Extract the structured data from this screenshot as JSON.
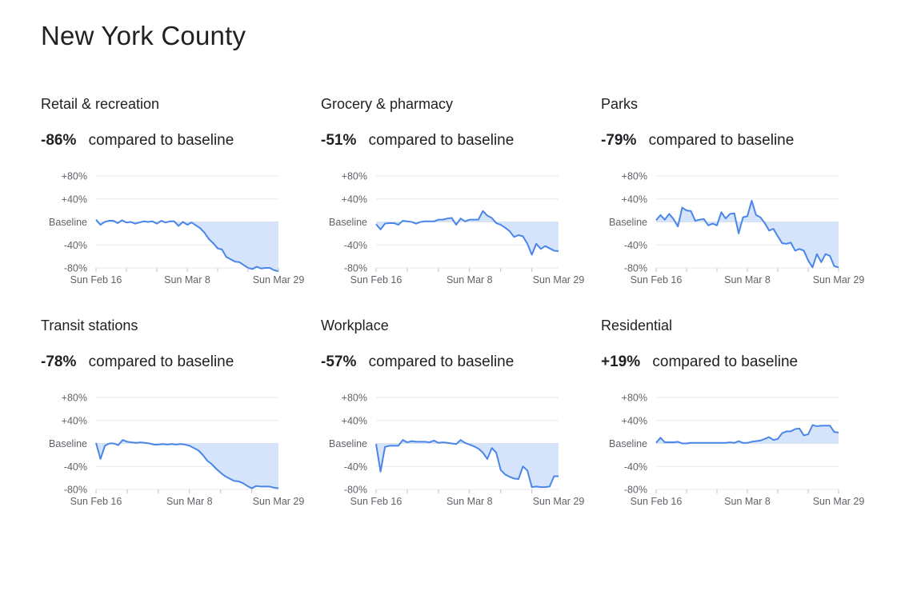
{
  "title": "New York County",
  "chart_data": [
    {
      "type": "line",
      "title": "Retail & recreation",
      "change_value": "-86%",
      "change_label": "compared to baseline",
      "y_ticks": [
        "+80%",
        "+40%",
        "Baseline",
        "-40%",
        "-80%"
      ],
      "x_ticks": [
        "Sun Feb 16",
        "Sun Mar 8",
        "Sun Mar 29"
      ],
      "ylim": [
        -80,
        80
      ],
      "colors": {
        "line": "#4a86e8",
        "fill": "#d6e4fb"
      },
      "values": [
        4,
        -5,
        0,
        2,
        2,
        -2,
        3,
        -1,
        0,
        -3,
        -1,
        1,
        0,
        1,
        -3,
        2,
        -1,
        1,
        1,
        -7,
        0,
        -5,
        -1,
        -6,
        -11,
        -19,
        -30,
        -37,
        -46,
        -48,
        -61,
        -65,
        -69,
        -70,
        -75,
        -80,
        -82,
        -78,
        -81,
        -80,
        -80,
        -84,
        -86
      ]
    },
    {
      "type": "line",
      "title": "Grocery & pharmacy",
      "change_value": "-51%",
      "change_label": "compared to baseline",
      "y_ticks": [
        "+80%",
        "+40%",
        "Baseline",
        "-40%",
        "-80%"
      ],
      "x_ticks": [
        "Sun Feb 16",
        "Sun Mar 8",
        "Sun Mar 29"
      ],
      "ylim": [
        -80,
        80
      ],
      "colors": {
        "line": "#4a86e8",
        "fill": "#d6e4fb"
      },
      "values": [
        -4,
        -13,
        -3,
        -2,
        -2,
        -5,
        2,
        1,
        0,
        -3,
        0,
        1,
        1,
        1,
        4,
        4,
        6,
        7,
        -5,
        6,
        1,
        4,
        4,
        4,
        19,
        11,
        7,
        -2,
        -5,
        -10,
        -16,
        -26,
        -23,
        -25,
        -38,
        -57,
        -38,
        -47,
        -42,
        -46,
        -50,
        -51
      ]
    },
    {
      "type": "line",
      "title": "Parks",
      "change_value": "-79%",
      "change_label": "compared to baseline",
      "y_ticks": [
        "+80%",
        "+40%",
        "Baseline",
        "-40%",
        "-80%"
      ],
      "x_ticks": [
        "Sun Feb 16",
        "Sun Mar 8",
        "Sun Mar 29"
      ],
      "ylim": [
        -80,
        80
      ],
      "colors": {
        "line": "#4a86e8",
        "fill": "#d6e4fb"
      },
      "values": [
        3,
        12,
        4,
        14,
        5,
        -8,
        25,
        20,
        19,
        2,
        4,
        5,
        -6,
        -3,
        -6,
        17,
        6,
        14,
        15,
        -20,
        8,
        10,
        37,
        12,
        8,
        -2,
        -15,
        -12,
        -25,
        -37,
        -38,
        -36,
        -50,
        -47,
        -50,
        -67,
        -79,
        -56,
        -70,
        -56,
        -59,
        -77,
        -79
      ]
    },
    {
      "type": "line",
      "title": "Transit stations",
      "change_value": "-78%",
      "change_label": "compared to baseline",
      "y_ticks": [
        "+80%",
        "+40%",
        "Baseline",
        "-40%",
        "-80%"
      ],
      "x_ticks": [
        "Sun Feb 16",
        "Sun Mar 8",
        "Sun Mar 29"
      ],
      "ylim": [
        -80,
        80
      ],
      "colors": {
        "line": "#4a86e8",
        "fill": "#d6e4fb"
      },
      "values": [
        1,
        -27,
        -4,
        0,
        0,
        -3,
        6,
        3,
        2,
        1,
        2,
        1,
        0,
        -2,
        -2,
        -1,
        -2,
        -1,
        -2,
        -1,
        -2,
        -4,
        -8,
        -12,
        -20,
        -30,
        -36,
        -44,
        -51,
        -57,
        -61,
        -65,
        -66,
        -69,
        -74,
        -78,
        -74,
        -75,
        -75,
        -75,
        -77,
        -78
      ]
    },
    {
      "type": "line",
      "title": "Workplace",
      "change_value": "-57%",
      "change_label": "compared to baseline",
      "y_ticks": [
        "+80%",
        "+40%",
        "Baseline",
        "-40%",
        "-80%"
      ],
      "x_ticks": [
        "Sun Feb 16",
        "Sun Mar 8",
        "Sun Mar 29"
      ],
      "ylim": [
        -80,
        80
      ],
      "colors": {
        "line": "#4a86e8",
        "fill": "#d6e4fb"
      },
      "values": [
        -1,
        -49,
        -6,
        -4,
        -4,
        -4,
        6,
        2,
        4,
        3,
        3,
        3,
        2,
        5,
        1,
        2,
        1,
        0,
        -1,
        6,
        1,
        -2,
        -5,
        -9,
        -16,
        -27,
        -8,
        -16,
        -46,
        -54,
        -58,
        -61,
        -62,
        -40,
        -47,
        -76,
        -75,
        -76,
        -76,
        -75,
        -57,
        -57
      ]
    },
    {
      "type": "line",
      "title": "Residential",
      "change_value": "+19%",
      "change_label": "compared to baseline",
      "y_ticks": [
        "+80%",
        "+40%",
        "Baseline",
        "-40%",
        "-80%"
      ],
      "x_ticks": [
        "Sun Feb 16",
        "Sun Mar 8",
        "Sun Mar 29"
      ],
      "ylim": [
        -80,
        80
      ],
      "colors": {
        "line": "#4a86e8",
        "fill": "#d6e4fb"
      },
      "values": [
        1,
        10,
        2,
        2,
        2,
        3,
        0,
        0,
        1,
        1,
        1,
        1,
        1,
        1,
        1,
        1,
        1,
        2,
        1,
        4,
        1,
        1,
        3,
        4,
        5,
        8,
        11,
        6,
        8,
        18,
        21,
        21,
        25,
        26,
        14,
        16,
        32,
        30,
        31,
        31,
        31,
        20,
        19
      ]
    }
  ]
}
